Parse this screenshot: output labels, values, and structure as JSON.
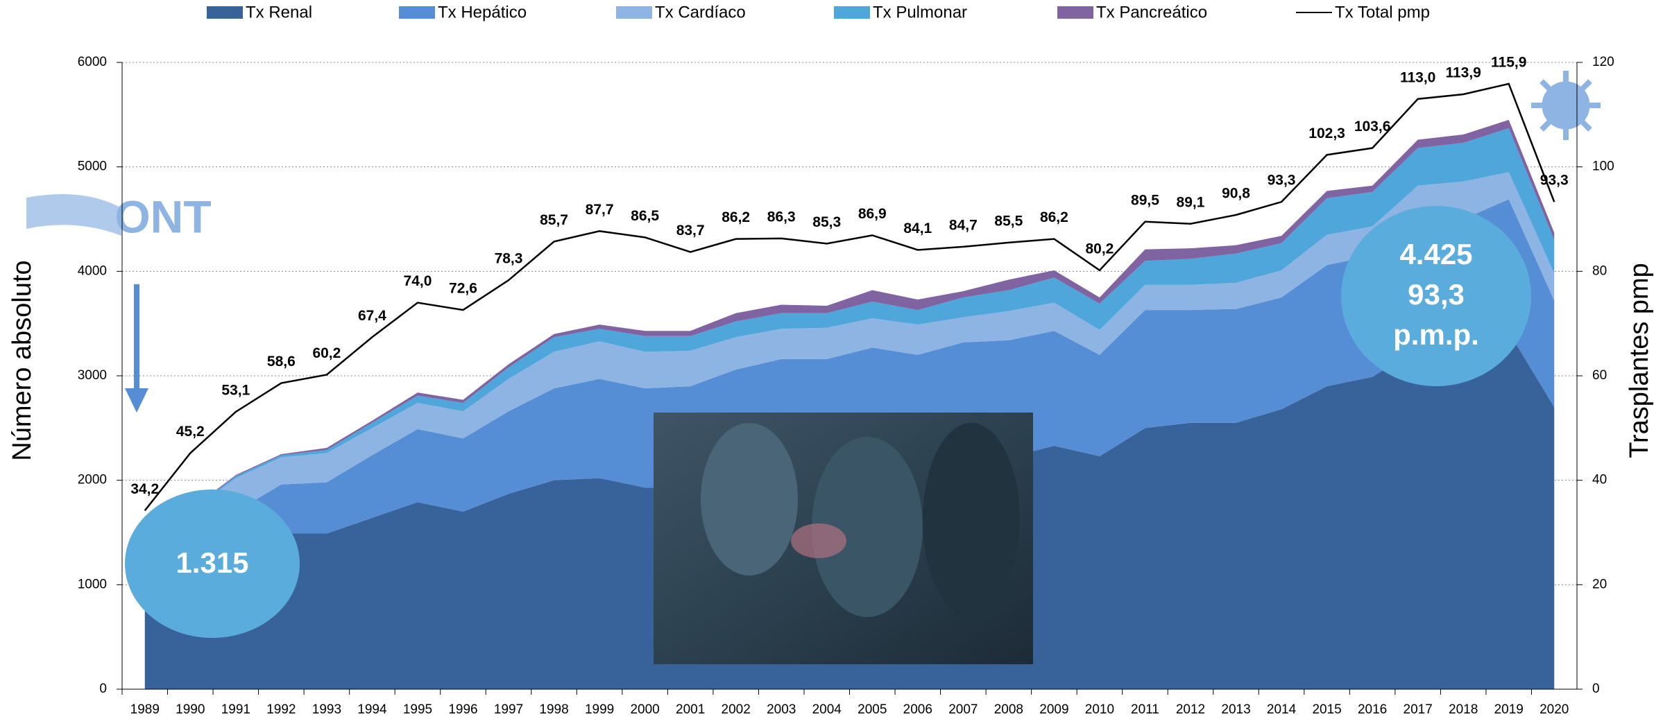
{
  "chart_data": {
    "type": "area",
    "stacked": true,
    "ylabel": "Número absoluto",
    "y2label": "Trasplantes pmp",
    "ylim": [
      0,
      6000
    ],
    "yticks": [
      0,
      1000,
      2000,
      3000,
      4000,
      5000,
      6000
    ],
    "y2lim": [
      0,
      120
    ],
    "y2ticks": [
      0,
      20,
      40,
      60,
      80,
      100,
      120
    ],
    "grid": true,
    "legend": "top",
    "categories": [
      "1989",
      "1990",
      "1991",
      "1992",
      "1993",
      "1994",
      "1995",
      "1996",
      "1997",
      "1998",
      "1999",
      "2000",
      "2001",
      "2002",
      "2003",
      "2004",
      "2005",
      "2006",
      "2007",
      "2008",
      "2009",
      "2010",
      "2011",
      "2012",
      "2013",
      "2014",
      "2015",
      "2016",
      "2017",
      "2018",
      "2019",
      "2020"
    ],
    "series": [
      {
        "name": "Tx Renal",
        "color": "#37639a",
        "values": [
          1100,
          1250,
          1470,
          1490,
          1490,
          1640,
          1790,
          1700,
          1870,
          2000,
          2020,
          1930,
          1920,
          2000,
          2030,
          2100,
          2200,
          2150,
          2200,
          2220,
          2330,
          2230,
          2500,
          2550,
          2550,
          2680,
          2900,
          2990,
          3260,
          3310,
          3420,
          2700
        ]
      },
      {
        "name": "Tx Hepático",
        "color": "#558ed5",
        "values": [
          100,
          250,
          230,
          470,
          490,
          600,
          700,
          700,
          790,
          880,
          950,
          950,
          980,
          1060,
          1130,
          1060,
          1070,
          1050,
          1120,
          1120,
          1100,
          970,
          1130,
          1080,
          1090,
          1070,
          1160,
          1160,
          1090,
          1190,
          1270,
          1020
        ]
      },
      {
        "name": "Tx Cardíaco",
        "color": "#8eb4e3",
        "values": [
          50,
          200,
          320,
          260,
          280,
          260,
          250,
          260,
          310,
          350,
          360,
          350,
          340,
          310,
          290,
          300,
          280,
          290,
          240,
          280,
          270,
          240,
          240,
          240,
          250,
          260,
          290,
          280,
          470,
          360,
          260,
          260
        ]
      },
      {
        "name": "Tx Pulmonar",
        "color": "#4fa6da",
        "values": [
          50,
          10,
          20,
          20,
          30,
          50,
          70,
          80,
          110,
          140,
          120,
          150,
          140,
          150,
          150,
          140,
          160,
          140,
          190,
          200,
          240,
          250,
          230,
          250,
          280,
          260,
          350,
          330,
          360,
          370,
          420,
          320
        ]
      },
      {
        "name": "Tx Pancreático",
        "color": "#8064a2",
        "values": [
          5,
          10,
          10,
          10,
          20,
          20,
          30,
          30,
          30,
          30,
          40,
          50,
          50,
          80,
          80,
          70,
          110,
          100,
          60,
          100,
          70,
          60,
          110,
          100,
          80,
          70,
          70,
          60,
          80,
          80,
          80,
          70
        ]
      },
      {
        "name": "Tx Total pmp",
        "type": "line",
        "axis": "y2",
        "color": "#000000",
        "values": [
          34.2,
          45.2,
          53.1,
          58.6,
          60.2,
          67.4,
          74.0,
          72.6,
          78.3,
          85.7,
          87.7,
          86.5,
          83.7,
          86.2,
          86.3,
          85.3,
          86.9,
          84.1,
          84.7,
          85.5,
          86.2,
          80.2,
          89.5,
          89.1,
          90.8,
          93.3,
          102.3,
          103.6,
          113.0,
          113.9,
          115.9,
          93.3
        ],
        "value_labels": [
          "34,2",
          "45,2",
          "53,1",
          "58,6",
          "60,2",
          "67,4",
          "74,0",
          "72,6",
          "78,3",
          "85,7",
          "87,7",
          "86,5",
          "83,7",
          "86,2",
          "86,3",
          "85,3",
          "86,9",
          "84,1",
          "84,7",
          "85,5",
          "86,2",
          "80,2",
          "89,5",
          "89,1",
          "90,8",
          "93,3",
          "102,3",
          "103,6",
          "113,0",
          "113,9",
          "115,9",
          "93,3"
        ]
      }
    ],
    "annotations": [
      "1.315",
      "4.425",
      "93,3",
      "p.m.p."
    ],
    "logo": "ONT"
  }
}
